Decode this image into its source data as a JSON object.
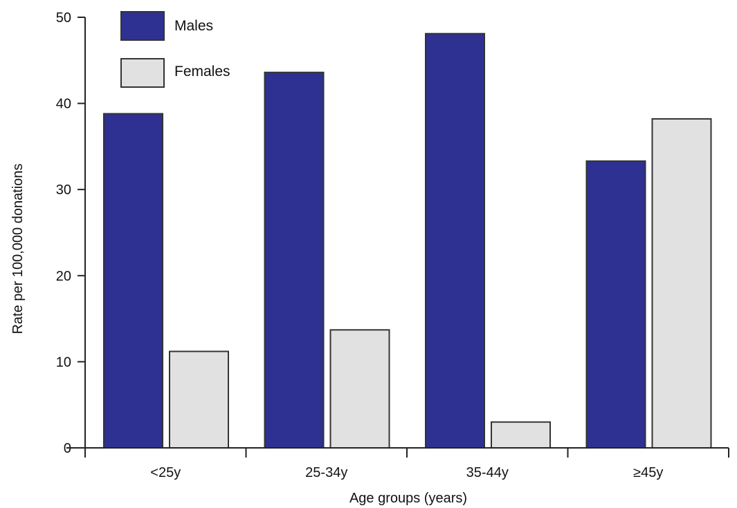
{
  "chart_data": {
    "type": "bar",
    "categories": [
      "<25y",
      "25-34y",
      "35-44y",
      "≥45y"
    ],
    "series": [
      {
        "name": "Males",
        "values": [
          38.8,
          43.6,
          48.1,
          33.3
        ],
        "color": "#2e3192"
      },
      {
        "name": "Females",
        "values": [
          11.2,
          13.7,
          3.0,
          38.2
        ],
        "color": "#e1e1e1"
      }
    ],
    "xlabel": "Age groups (years)",
    "ylabel": "Rate per 100,000 donations",
    "ylim": [
      0,
      50
    ],
    "yticks": [
      0,
      10,
      20,
      30,
      40,
      50
    ],
    "grid": false,
    "legend_position": "top-left"
  }
}
